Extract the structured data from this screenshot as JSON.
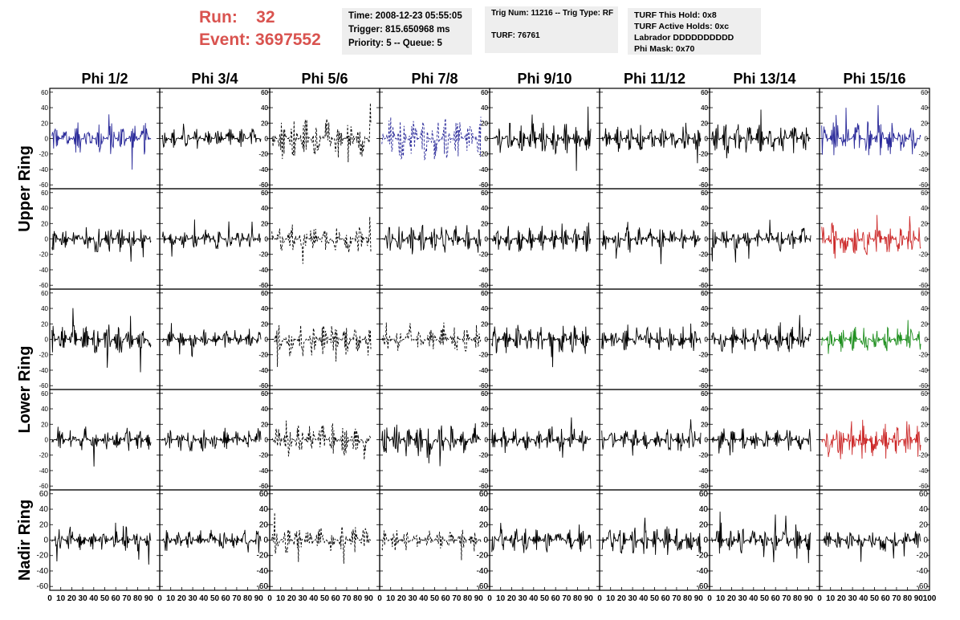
{
  "header": {
    "run_label": "Run:",
    "run_value": "32",
    "event_label": "Event:",
    "event_value": "3697552"
  },
  "info_panels": {
    "time": "Time: 2008-12-23 05:55:05",
    "trigger": "Trigger: 815.650968 ms",
    "priority": "Priority: 5 -- Queue: 5",
    "trig_num": "Trig Num: 11216 -- Trig Type: RF",
    "turf": "TURF: 76761",
    "turf_this_hold": "TURF This Hold: 0x8",
    "turf_active_holds": "TURF Active Holds: 0xc",
    "labrador": "Labrador DDDDDDDDDD",
    "phi_mask": "Phi Mask: 0x70"
  },
  "colors": {
    "header_red": "#d9534f",
    "trace_black": "#000000",
    "trace_blue": "#2b2b9a",
    "trace_red": "#cc2a2a",
    "trace_green": "#1f8f1f",
    "info_bg": "#eeeeee"
  },
  "chart_data": {
    "type": "line",
    "columns": [
      "Phi 1/2",
      "Phi 3/4",
      "Phi 5/6",
      "Phi 7/8",
      "Phi 9/10",
      "Phi 11/12",
      "Phi 13/14",
      "Phi 15/16"
    ],
    "row_labels": [
      "Upper Ring",
      "Lower Ring",
      "Nadir Ring"
    ],
    "ylim": [
      -65,
      65
    ],
    "xlim": [
      0,
      100
    ],
    "y_ticks": [
      -60,
      -40,
      -20,
      0,
      20,
      40,
      60
    ],
    "x_ticks": [
      0,
      10,
      20,
      30,
      40,
      50,
      60,
      70,
      80,
      90,
      100
    ],
    "panels_per_column": 5,
    "traces": [
      [
        "blue",
        "black",
        "dashed",
        "dashed-blue",
        "black",
        "black",
        "black",
        "blue"
      ],
      [
        "black",
        "black",
        "dashed",
        "black",
        "black",
        "black",
        "black",
        "red"
      ],
      [
        "black",
        "black",
        "dashed",
        "dashed",
        "black",
        "black",
        "black",
        "green"
      ],
      [
        "black",
        "black",
        "dashed",
        "black",
        "black",
        "black",
        "black",
        "red"
      ],
      [
        "black",
        "black",
        "dashed",
        "dashed",
        "black",
        "black",
        "black",
        "black"
      ]
    ],
    "amplitude": [
      [
        22,
        14,
        28,
        30,
        22,
        18,
        20,
        24
      ],
      [
        18,
        14,
        18,
        18,
        18,
        16,
        16,
        22
      ],
      [
        20,
        14,
        22,
        16,
        20,
        16,
        18,
        16
      ],
      [
        16,
        16,
        22,
        22,
        16,
        16,
        16,
        26
      ],
      [
        18,
        14,
        18,
        14,
        16,
        20,
        18,
        14
      ]
    ],
    "grid": false
  }
}
